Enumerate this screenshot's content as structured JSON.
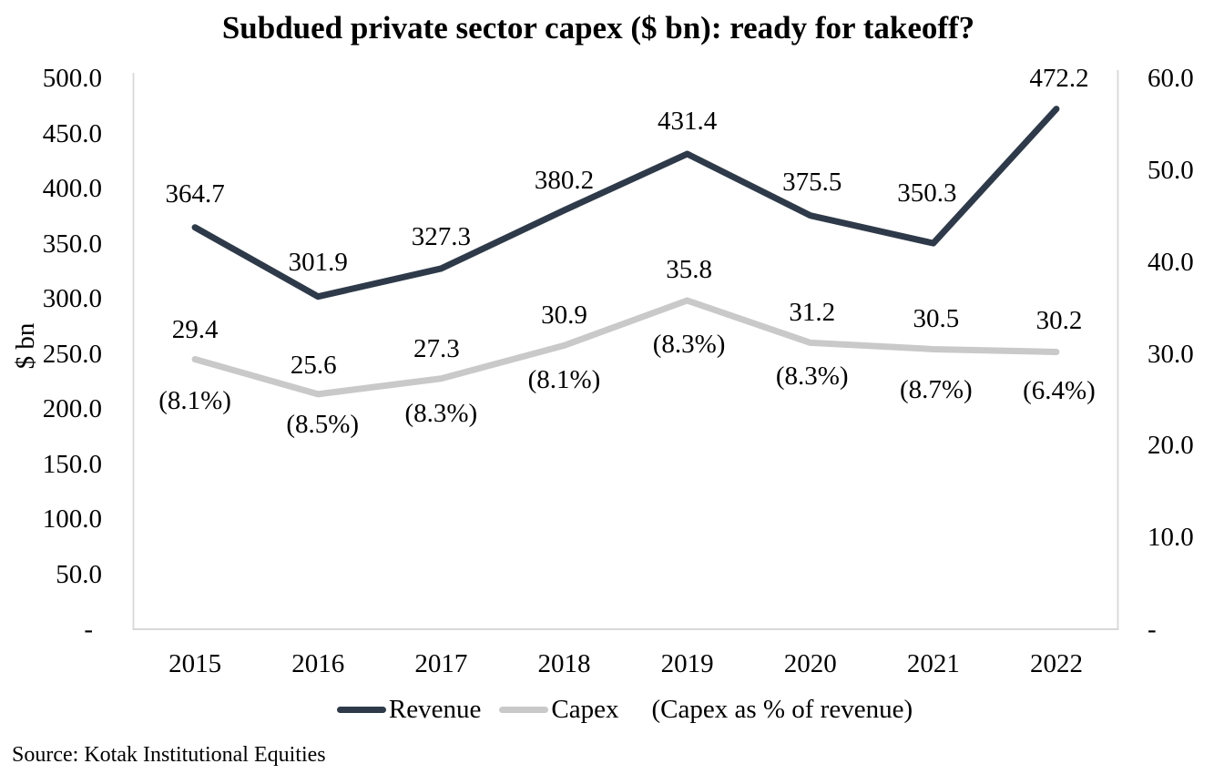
{
  "title": "Subdued private sector capex ($ bn): ready for takeoff?",
  "source": "Source: Kotak Institutional Equities",
  "left_axis": {
    "title": "$ bn",
    "tick_labels": [
      "500.0",
      "450.0",
      "400.0",
      "350.0",
      "300.0",
      "250.0",
      "200.0",
      "150.0",
      "100.0",
      "50.0",
      "-"
    ],
    "min": 0,
    "max": 500,
    "step": 50
  },
  "right_axis": {
    "tick_labels": [
      "60.0",
      "50.0",
      "40.0",
      "30.0",
      "20.0",
      "10.0",
      "-"
    ],
    "min": 0,
    "max": 60,
    "step": 10
  },
  "legend": {
    "items": [
      {
        "label": "Revenue",
        "swatch_color": "#2E3A49"
      },
      {
        "label": "Capex",
        "swatch_color": "#C9C9C9"
      },
      {
        "label": "(Capex as % of revenue)",
        "swatch_color": null
      }
    ]
  },
  "chart_data": {
    "type": "line",
    "categories": [
      "2015",
      "2016",
      "2017",
      "2018",
      "2019",
      "2020",
      "2021",
      "2022"
    ],
    "series": [
      {
        "name": "Revenue",
        "axis": "left",
        "color": "#2E3A49",
        "values": [
          364.7,
          301.9,
          327.3,
          380.2,
          431.4,
          375.5,
          350.3,
          472.2
        ],
        "data_labels": [
          "364.7",
          "301.9",
          "327.3",
          "380.2",
          "431.4",
          "375.5",
          "350.3",
          "472.2"
        ]
      },
      {
        "name": "Capex",
        "axis": "right",
        "color": "#C9C9C9",
        "values": [
          29.4,
          25.6,
          27.3,
          30.9,
          35.8,
          31.2,
          30.5,
          30.2
        ],
        "data_labels": [
          "29.4",
          "25.6",
          "27.3",
          "30.9",
          "35.8",
          "31.2",
          "30.5",
          "30.2"
        ]
      }
    ],
    "annotations": {
      "name": "Capex as % of revenue",
      "labels": [
        "(8.1%)",
        "(8.5%)",
        "(8.3%)",
        "(8.1%)",
        "(8.3%)",
        "(8.3%)",
        "(8.7%)",
        "(6.4%)"
      ]
    },
    "left_ylim": [
      0,
      500
    ],
    "right_ylim": [
      0,
      60
    ],
    "grid": false,
    "legend_position": "bottom"
  },
  "colors": {
    "revenue": "#2E3A49",
    "capex": "#C9C9C9",
    "axis_line": "#D8D8D8",
    "text": "#000000",
    "background": "#FFFFFF"
  }
}
